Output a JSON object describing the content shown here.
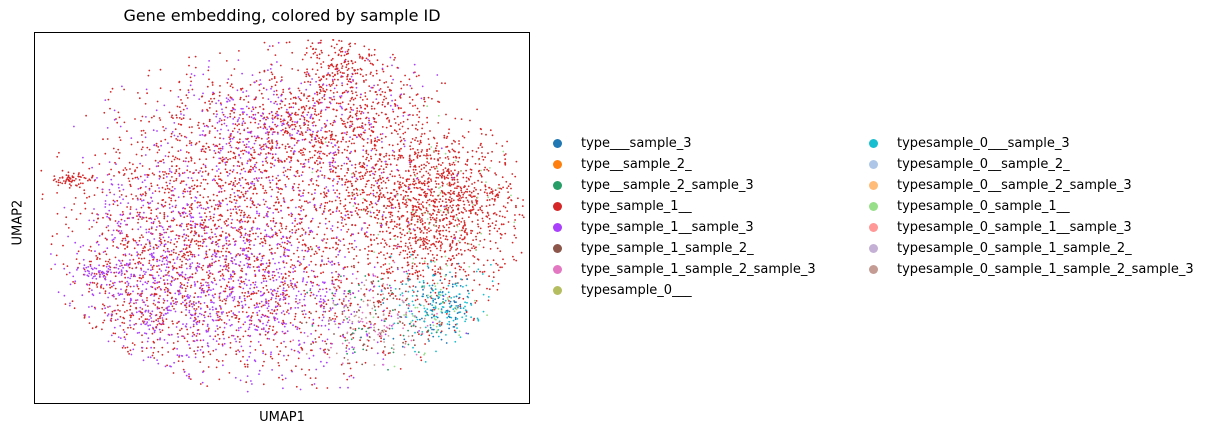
{
  "chart_data": {
    "type": "scatter",
    "title": "Gene embedding, colored by sample ID",
    "xlabel": "UMAP1",
    "ylabel": "UMAP2",
    "xticks": "none",
    "yticks": "none",
    "grid": false,
    "legend_position": "right, two columns",
    "series": [
      {
        "name": "type___sample_3",
        "color": "#1f77b4"
      },
      {
        "name": "type__sample_2_",
        "color": "#ff7f0e"
      },
      {
        "name": "type__sample_2_sample_3",
        "color": "#279e68"
      },
      {
        "name": "type_sample_1__",
        "color": "#d62728"
      },
      {
        "name": "type_sample_1__sample_3",
        "color": "#aa40fc"
      },
      {
        "name": "type_sample_1_sample_2_",
        "color": "#8c564b"
      },
      {
        "name": "type_sample_1_sample_2_sample_3",
        "color": "#e377c2"
      },
      {
        "name": "typesample_0___",
        "color": "#b5bd61"
      },
      {
        "name": "typesample_0___sample_3",
        "color": "#17becf"
      },
      {
        "name": "typesample_0__sample_2_",
        "color": "#aec7e8"
      },
      {
        "name": "typesample_0__sample_2_sample_3",
        "color": "#ffbb78"
      },
      {
        "name": "typesample_0_sample_1__",
        "color": "#98df8a"
      },
      {
        "name": "typesample_0_sample_1__sample_3",
        "color": "#ff9896"
      },
      {
        "name": "typesample_0_sample_1_sample_2_",
        "color": "#c5b0d5"
      },
      {
        "name": "typesample_0_sample_1_sample_2_sample_3",
        "color": "#c49c94"
      }
    ]
  }
}
